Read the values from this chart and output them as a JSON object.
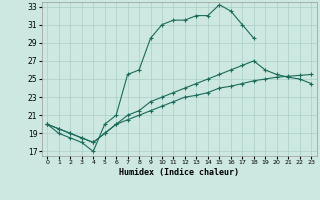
{
  "xlabel": "Humidex (Indice chaleur)",
  "bg_color": "#cce8e0",
  "grid_color": "#aacfc8",
  "line_color": "#1a6b5a",
  "xlim": [
    -0.5,
    23.5
  ],
  "ylim": [
    16.5,
    33.5
  ],
  "xticks": [
    0,
    1,
    2,
    3,
    4,
    5,
    6,
    7,
    8,
    9,
    10,
    11,
    12,
    13,
    14,
    15,
    16,
    17,
    18,
    19,
    20,
    21,
    22,
    23
  ],
  "yticks": [
    17,
    19,
    21,
    23,
    25,
    27,
    29,
    31,
    33
  ],
  "curve1_x": [
    0,
    1,
    2,
    3,
    4,
    5,
    6,
    7,
    8,
    9,
    10,
    11,
    12,
    13,
    14,
    15,
    16,
    17,
    18
  ],
  "curve1_y": [
    20,
    19,
    18.5,
    18,
    17,
    20,
    21,
    25.5,
    26,
    29.5,
    31,
    31.5,
    31.5,
    32,
    32,
    33.2,
    32.5,
    31,
    29.5
  ],
  "curve2_x": [
    0,
    1,
    2,
    3,
    4,
    5,
    6,
    7,
    8,
    9,
    10,
    11,
    12,
    13,
    14,
    15,
    16,
    17,
    18,
    19,
    20,
    21,
    22,
    23
  ],
  "curve2_y": [
    20,
    19.5,
    19,
    18.5,
    18,
    19,
    20,
    21,
    21.5,
    22.5,
    23,
    23.5,
    24,
    24.5,
    25,
    25.5,
    26,
    26.5,
    27,
    26,
    25.5,
    25.2,
    25,
    24.5
  ],
  "curve3_x": [
    0,
    1,
    2,
    3,
    4,
    5,
    6,
    7,
    8,
    9,
    10,
    11,
    12,
    13,
    14,
    15,
    16,
    17,
    18,
    19,
    20,
    21,
    22,
    23
  ],
  "curve3_y": [
    20,
    19.5,
    19,
    18.5,
    18,
    19,
    20,
    20.5,
    21,
    21.5,
    22,
    22.5,
    23,
    23.2,
    23.5,
    24,
    24.2,
    24.5,
    24.8,
    25,
    25.2,
    25.3,
    25.4,
    25.5
  ]
}
